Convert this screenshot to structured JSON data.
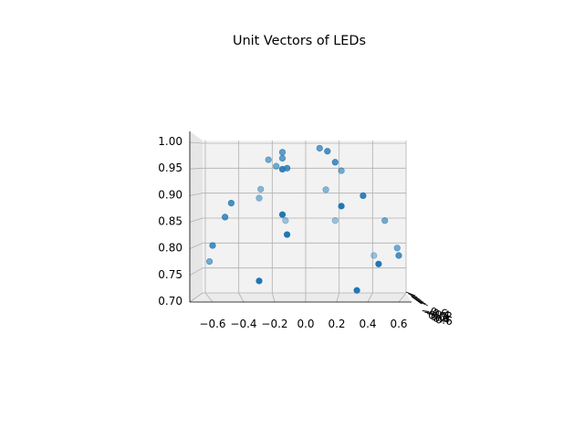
{
  "chart_data": {
    "type": "scatter",
    "projection": "3d",
    "title": "Unit Vectors of LEDs",
    "xlabel": "",
    "ylabel": "",
    "zlabel": "",
    "grid": true,
    "marker_color": "#1f77b4",
    "x_ticks": [
      "−0.6",
      "−0.4",
      "−0.2",
      "0.0",
      "0.2",
      "0.4",
      "0.6"
    ],
    "z_ticks": [
      "0.70",
      "0.75",
      "0.80",
      "0.85",
      "0.90",
      "0.95",
      "1.00"
    ],
    "y_ticks": [
      "−0.6",
      "−0.4",
      "−0.2",
      "0.0",
      "0.2",
      "0.4",
      "0.6"
    ],
    "xlim": [
      -0.7,
      0.7
    ],
    "zlim": [
      0.68,
      1.01
    ],
    "points": [
      {
        "x": 0.09,
        "z": 0.99,
        "alpha": 0.7
      },
      {
        "x": 0.14,
        "z": 0.984,
        "alpha": 0.8
      },
      {
        "x": -0.15,
        "z": 0.982,
        "alpha": 0.7
      },
      {
        "x": -0.15,
        "z": 0.97,
        "alpha": 0.7
      },
      {
        "x": -0.24,
        "z": 0.967,
        "alpha": 0.6
      },
      {
        "x": 0.19,
        "z": 0.962,
        "alpha": 0.8
      },
      {
        "x": -0.19,
        "z": 0.954,
        "alpha": 0.6
      },
      {
        "x": -0.12,
        "z": 0.95,
        "alpha": 0.8
      },
      {
        "x": -0.15,
        "z": 0.948,
        "alpha": 0.9
      },
      {
        "x": 0.23,
        "z": 0.945,
        "alpha": 0.6
      },
      {
        "x": -0.29,
        "z": 0.908,
        "alpha": 0.5
      },
      {
        "x": 0.13,
        "z": 0.907,
        "alpha": 0.5
      },
      {
        "x": 0.37,
        "z": 0.895,
        "alpha": 0.9
      },
      {
        "x": -0.3,
        "z": 0.89,
        "alpha": 0.5
      },
      {
        "x": -0.48,
        "z": 0.88,
        "alpha": 0.8
      },
      {
        "x": 0.23,
        "z": 0.874,
        "alpha": 1.0
      },
      {
        "x": -0.15,
        "z": 0.857,
        "alpha": 1.0
      },
      {
        "x": -0.52,
        "z": 0.852,
        "alpha": 0.8
      },
      {
        "x": -0.13,
        "z": 0.845,
        "alpha": 0.4
      },
      {
        "x": 0.19,
        "z": 0.845,
        "alpha": 0.4
      },
      {
        "x": 0.51,
        "z": 0.845,
        "alpha": 0.6
      },
      {
        "x": -0.12,
        "z": 0.817,
        "alpha": 1.0
      },
      {
        "x": -0.6,
        "z": 0.795,
        "alpha": 0.8
      },
      {
        "x": 0.59,
        "z": 0.79,
        "alpha": 0.6
      },
      {
        "x": 0.44,
        "z": 0.775,
        "alpha": 0.4
      },
      {
        "x": 0.6,
        "z": 0.775,
        "alpha": 0.8
      },
      {
        "x": -0.62,
        "z": 0.763,
        "alpha": 0.6
      },
      {
        "x": 0.47,
        "z": 0.758,
        "alpha": 1.0
      },
      {
        "x": -0.3,
        "z": 0.724,
        "alpha": 1.0
      },
      {
        "x": 0.33,
        "z": 0.705,
        "alpha": 1.0
      }
    ]
  }
}
